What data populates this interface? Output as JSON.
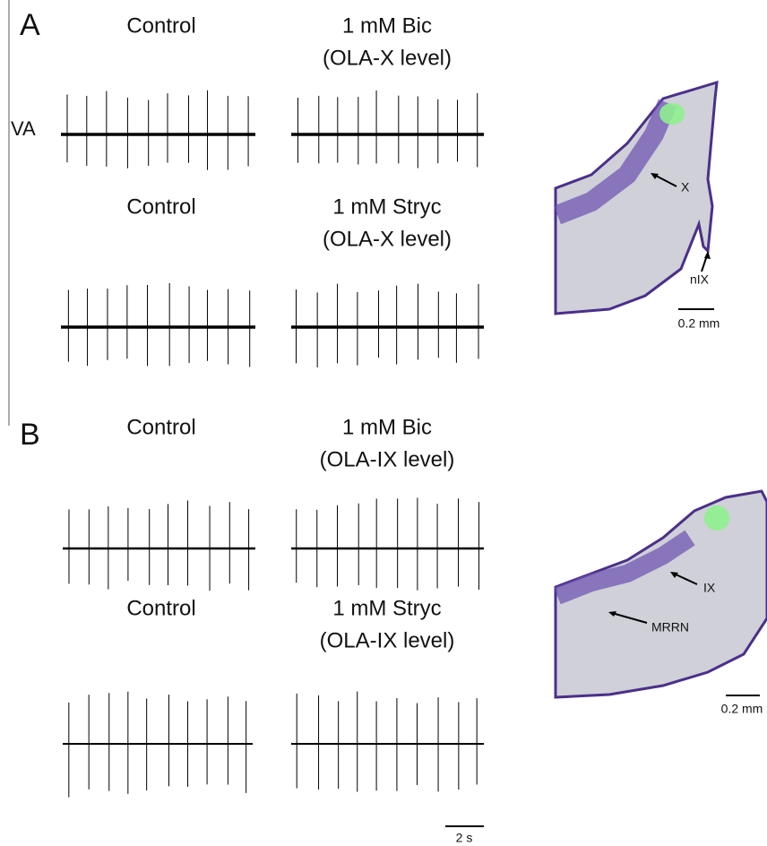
{
  "panels": [
    {
      "label": "A",
      "side_label": "VA",
      "rows": [
        {
          "left": "Control",
          "right": [
            "1 mM Bic",
            "(OLA-X level)"
          ]
        },
        {
          "left": "Control",
          "right": [
            "1 mM Stryc",
            "(OLA-X level)"
          ]
        }
      ],
      "histology": {
        "labels": [
          "X",
          "nIX"
        ],
        "scale": "0.2 mm"
      }
    },
    {
      "label": "B",
      "rows": [
        {
          "left": "Control",
          "right": [
            "1 mM Bic",
            "(OLA-IX level)"
          ]
        },
        {
          "left": "Control",
          "right": [
            "1 mM Stryc",
            "(OLA-IX level)"
          ]
        }
      ],
      "histology": {
        "labels": [
          "IX",
          "MRRN"
        ],
        "scale": "0.2 mm"
      }
    }
  ],
  "time_scale": "2 s"
}
